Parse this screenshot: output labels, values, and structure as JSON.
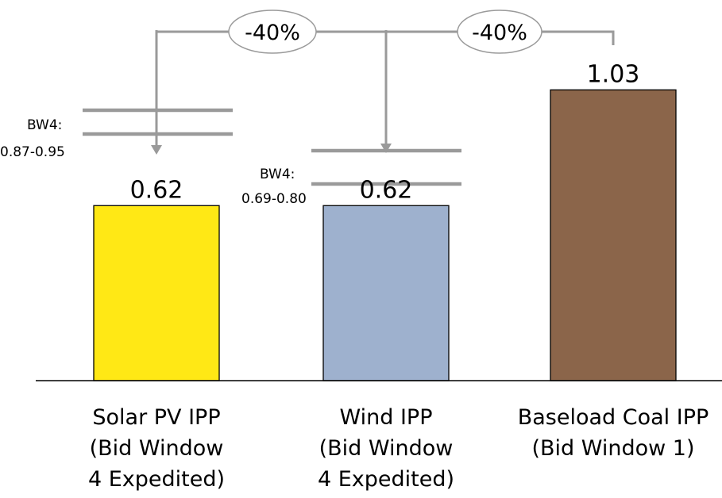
{
  "chart_data": {
    "type": "bar",
    "categories": [
      "Solar PV IPP\n(Bid Window\n4 Expedited)",
      "Wind IPP\n(Bid Window\n4 Expedited)",
      "Baseload Coal IPP\n(Bid Window 1)"
    ],
    "values": [
      0.62,
      0.62,
      1.03
    ],
    "value_labels": [
      "0.62",
      "0.62",
      "1.03"
    ],
    "colors": [
      "#FFE815",
      "#9EB1CE",
      "#8B654A"
    ],
    "ylim": [
      0,
      1.2
    ],
    "grid": false,
    "axis_visible": "x-baseline-only",
    "annotations": {
      "percent_changes": [
        "-40%",
        "-40%"
      ],
      "ranges": [
        {
          "label_line1": "BW4:",
          "label_line2": "0.87-0.95",
          "low": 0.87,
          "high": 0.95
        },
        {
          "label_line1": "BW4:",
          "label_line2": "0.69-0.80",
          "low": 0.69,
          "high": 0.8
        }
      ]
    }
  }
}
